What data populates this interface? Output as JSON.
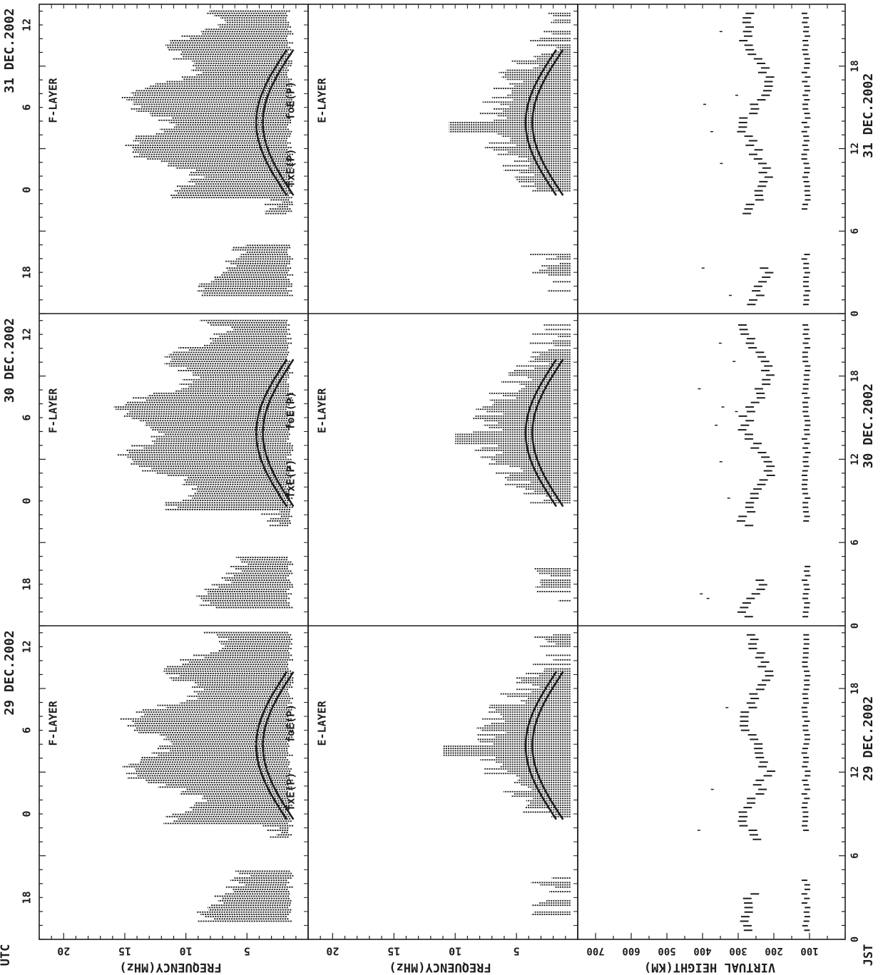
{
  "colors": {
    "ink": "#1e1e1e",
    "paper": "#ffffff"
  },
  "axis_labels": {
    "utc": "UTC",
    "jst": "JST",
    "freq_f": "FREQUENCY(MHz)",
    "freq_e": "FREQUENCY(MHz)",
    "height": "VIRTUAL HEIGHT(KM)"
  },
  "chart_data": {
    "type": "heatmap",
    "days": [
      {
        "title": "29 DEC.2002",
        "jst_label": "29 DEC.2002",
        "f_peak": 13.5,
        "e_peak": 11,
        "e_hump": 4.5
      },
      {
        "title": "30 DEC.2002",
        "jst_label": "30 DEC.2002",
        "f_peak": 14,
        "e_peak": 10,
        "e_hump": 5
      },
      {
        "title": "31 DEC.2002",
        "jst_label": "31 DEC.2002",
        "f_peak": 13.5,
        "e_peak": 10.5,
        "e_hump": 4.5
      }
    ],
    "layers": [
      {
        "label": "F-LAYER",
        "axis": "frequency"
      },
      {
        "label": "E-LAYER",
        "axis": "frequency"
      },
      {
        "label": "",
        "axis": "height"
      }
    ],
    "utc_ticks": [
      18,
      0,
      6,
      12
    ],
    "jst_ticks": [
      0,
      6,
      12,
      18
    ],
    "freq_ticks": [
      5,
      10,
      15,
      20
    ],
    "freq_range": [
      0,
      22
    ],
    "height_ticks": [
      100,
      200,
      300,
      400,
      500,
      600,
      700
    ],
    "height_range": [
      0,
      750
    ],
    "curve_labels": {
      "fxe": "fxE(P)",
      "foe": "foE(P)"
    },
    "grid": false
  }
}
